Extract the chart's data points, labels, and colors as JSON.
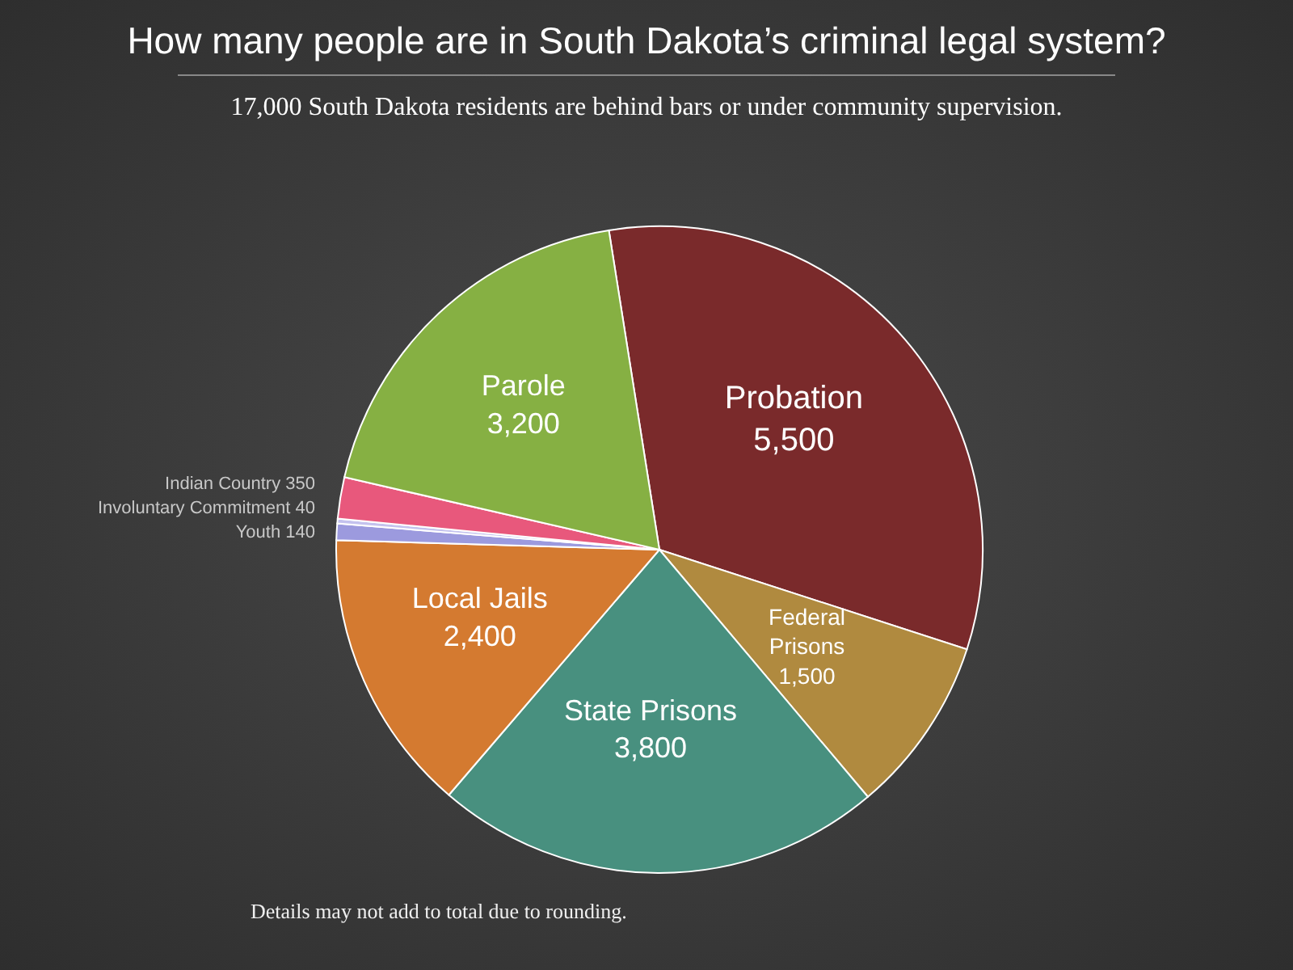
{
  "chart_data": {
    "type": "pie",
    "title": "How many people are in South Dakota’s criminal legal system?",
    "subtitle": "17,000 South Dakota residents are behind bars or under community supervision.",
    "categories": [
      "Probation",
      "Federal Prisons",
      "State Prisons",
      "Local Jails",
      "Youth",
      "Involuntary Commitment",
      "Indian Country",
      "Parole"
    ],
    "values": [
      5500,
      1500,
      3800,
      2400,
      140,
      40,
      350,
      3200
    ],
    "value_labels": [
      "5,500",
      "1,500",
      "3,800",
      "2,400",
      "140",
      "40",
      "350",
      "3,200"
    ],
    "colors": [
      "#7a2a2b",
      "#b08a3f",
      "#48907f",
      "#d47a30",
      "#9c9ade",
      "#c4c2ee",
      "#e8587c",
      "#86b043"
    ],
    "annotations": [
      "Details may not add to total due to rounding."
    ]
  }
}
